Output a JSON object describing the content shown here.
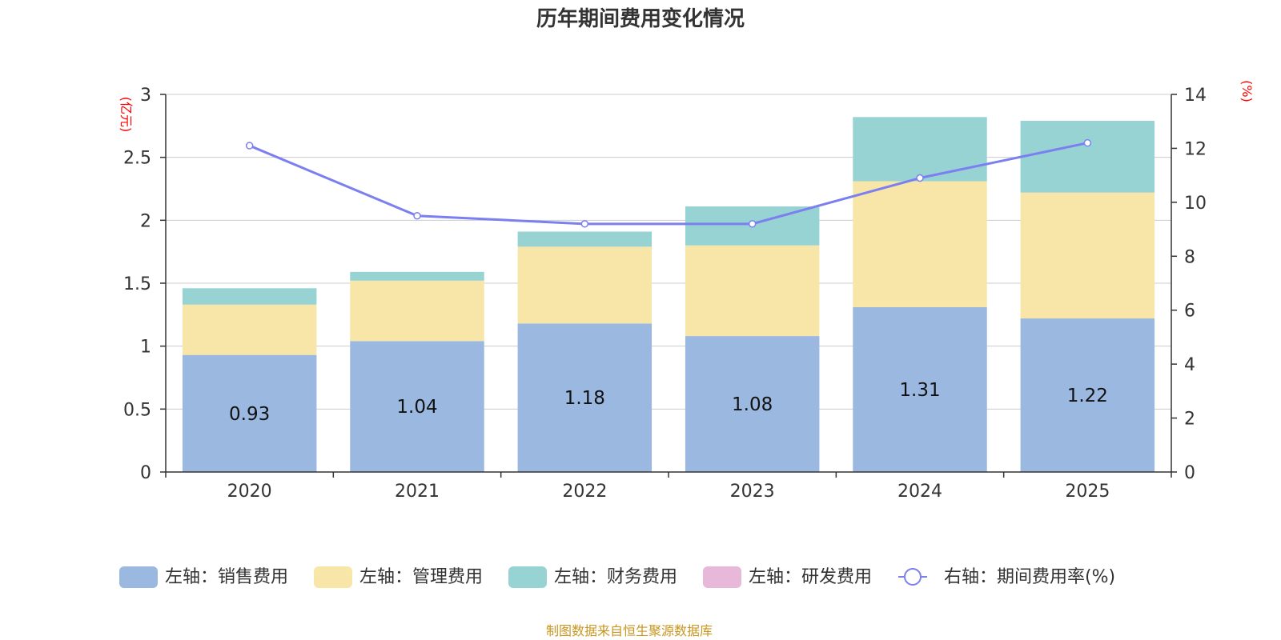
{
  "chart_data": {
    "type": "bar",
    "title": "历年期间费用变化情况",
    "categories": [
      "2020",
      "2021",
      "2022",
      "2023",
      "2024",
      "2025"
    ],
    "left_axis": {
      "unit": "(亿元)",
      "ylim": [
        0,
        3
      ],
      "ticks": [
        "0",
        "0.5",
        "1",
        "1.5",
        "2",
        "2.5",
        "3"
      ]
    },
    "right_axis": {
      "unit": "(%)",
      "ylim": [
        0,
        14
      ],
      "ticks": [
        "0",
        "2",
        "4",
        "6",
        "8",
        "10",
        "12",
        "14"
      ]
    },
    "series": [
      {
        "name": "左轴：销售费用",
        "kind": "bar",
        "color": "#9bb8e0",
        "values": [
          0.93,
          1.04,
          1.18,
          1.08,
          1.31,
          1.22
        ],
        "labels": [
          "0.93",
          "1.04",
          "1.18",
          "1.08",
          "1.31",
          "1.22"
        ]
      },
      {
        "name": "左轴：管理费用",
        "kind": "bar",
        "color": "#f7e6a8",
        "values": [
          0.4,
          0.48,
          0.61,
          0.72,
          1.0,
          1.0
        ]
      },
      {
        "name": "左轴：财务费用",
        "kind": "bar",
        "color": "#98d3d4",
        "values": [
          0.13,
          0.07,
          0.12,
          0.31,
          0.51,
          0.57
        ]
      },
      {
        "name": "左轴：研发费用",
        "kind": "bar",
        "color": "#e8b8da",
        "values": [
          0,
          0,
          0,
          0,
          0,
          0
        ]
      },
      {
        "name": "右轴：期间费用率(%)",
        "kind": "line",
        "color": "#7b7ff0",
        "values": [
          12.1,
          9.5,
          9.2,
          9.2,
          10.9,
          12.2
        ]
      }
    ],
    "source": "制图数据来自恒生聚源数据库"
  }
}
